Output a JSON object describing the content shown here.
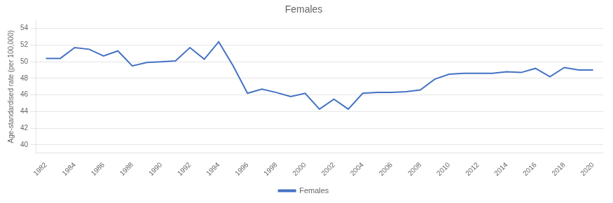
{
  "chart_data": {
    "type": "line",
    "title": "Females",
    "y_label": "Age-standardised rate (per 100,000)",
    "x": [
      1982,
      1983,
      1984,
      1985,
      1986,
      1987,
      1988,
      1989,
      1990,
      1991,
      1992,
      1993,
      1994,
      1995,
      1996,
      1997,
      1998,
      1999,
      2000,
      2001,
      2002,
      2003,
      2004,
      2005,
      2006,
      2007,
      2008,
      2009,
      2010,
      2011,
      2012,
      2013,
      2014,
      2015,
      2016,
      2017,
      2018,
      2019,
      2020
    ],
    "series": [
      {
        "name": "Females",
        "color": "#4472C4",
        "values": [
          50.4,
          50.4,
          51.7,
          51.5,
          50.7,
          51.3,
          49.5,
          49.9,
          50.0,
          50.1,
          51.7,
          50.3,
          52.4,
          49.5,
          46.2,
          46.7,
          46.3,
          45.8,
          46.2,
          44.3,
          45.5,
          44.3,
          46.2,
          46.3,
          46.3,
          46.4,
          46.6,
          47.9,
          48.5,
          48.6,
          48.6,
          48.6,
          48.8,
          48.7,
          49.2,
          48.2,
          49.3,
          49.0,
          49.0
        ]
      }
    ],
    "xlim": [
      1981.3,
      2020.7
    ],
    "xticks": [
      1982,
      1984,
      1986,
      1988,
      1990,
      1992,
      1994,
      1996,
      1998,
      2000,
      2002,
      2004,
      2006,
      2008,
      2010,
      2012,
      2014,
      2016,
      2018,
      2020
    ],
    "ylim": [
      39.0,
      55.0
    ],
    "yticks": [
      40,
      42,
      44,
      46,
      48,
      50,
      52,
      54
    ],
    "grid": "y",
    "legend": "bottom"
  }
}
